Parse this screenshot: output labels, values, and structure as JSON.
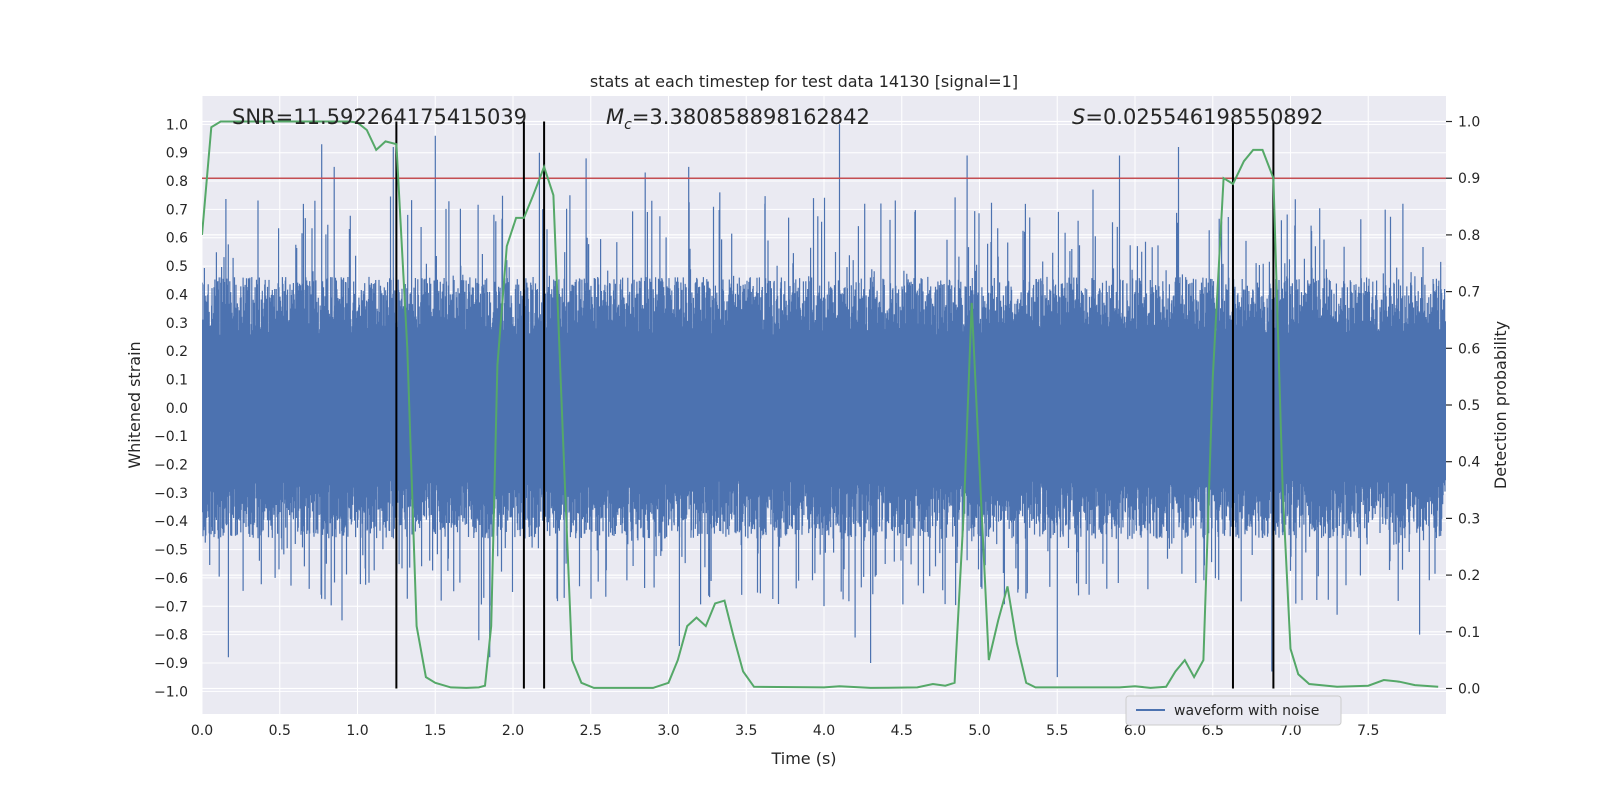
{
  "colors": {
    "background": "#eaeaf2",
    "grid": "#ffffff",
    "waveform": "#4c72b0",
    "probability": "#55a868",
    "threshold": "#c44e52",
    "markers": "#000000",
    "text": "#262626"
  },
  "chart_data": {
    "type": "line",
    "title": "stats at each timestep for test data 14130 [signal=1]",
    "xlabel": "Time (s)",
    "ylabel_left": "Whitened strain",
    "ylabel_right": "Detection probability",
    "xlim": [
      0,
      8
    ],
    "ylim_left": [
      -1.08,
      1.1
    ],
    "ylim_right": [
      -0.045,
      1.045
    ],
    "x_ticks": [
      "0.0",
      "0.5",
      "1.0",
      "1.5",
      "2.0",
      "2.5",
      "3.0",
      "3.5",
      "4.0",
      "4.5",
      "5.0",
      "5.5",
      "6.0",
      "6.5",
      "7.0",
      "7.5"
    ],
    "y_ticks_left": [
      "1.0",
      "0.9",
      "0.8",
      "0.7",
      "0.6",
      "0.5",
      "0.4",
      "0.3",
      "0.2",
      "0.1",
      "0.0",
      "-0.1",
      "-0.2",
      "-0.3",
      "-0.4",
      "-0.5",
      "-0.6",
      "-0.7",
      "-0.8",
      "-0.9",
      "-1.0"
    ],
    "y_ticks_right": [
      "1.0",
      "0.9",
      "0.8",
      "0.7",
      "0.6",
      "0.5",
      "0.4",
      "0.3",
      "0.2",
      "0.1",
      "0.0"
    ],
    "annotations": {
      "snr": "SNR=11.592264175415039",
      "mc_symbol": "M",
      "mc_sub": "c",
      "mc_value": "=3.380858898162842",
      "s_symbol": "S",
      "s_value": "=0.025546198550892"
    },
    "legend": {
      "label": "waveform with noise",
      "location": "lower-right"
    },
    "threshold": 0.9,
    "detection_markers": [
      1.25,
      2.07,
      2.2,
      6.63,
      6.89
    ],
    "series": [
      {
        "name": "waveform with noise",
        "axis": "left",
        "style": "dense-noise",
        "core_amplitude": 0.42,
        "peaks": [
          [
            0.77,
            0.93
          ],
          [
            0.8,
            -0.55
          ],
          [
            0.85,
            0.85
          ],
          [
            1.23,
            0.92
          ],
          [
            1.5,
            0.96
          ],
          [
            1.78,
            -0.82
          ],
          [
            1.85,
            -0.88
          ],
          [
            2.17,
            0.9
          ],
          [
            2.47,
            0.88
          ],
          [
            3.07,
            -0.84
          ],
          [
            3.13,
            0.85
          ],
          [
            3.33,
            0.76
          ],
          [
            4.1,
            1.0
          ],
          [
            4.2,
            -0.81
          ],
          [
            4.3,
            -0.9
          ],
          [
            4.92,
            0.89
          ],
          [
            5.5,
            -0.95
          ],
          [
            5.9,
            0.89
          ],
          [
            6.28,
            0.92
          ],
          [
            6.88,
            -0.93
          ],
          [
            7.3,
            -0.73
          ],
          [
            7.83,
            -0.8
          ],
          [
            0.17,
            -0.88
          ],
          [
            0.47,
            -0.6
          ],
          [
            0.9,
            -0.75
          ],
          [
            5.73,
            0.77
          ],
          [
            2.85,
            0.83
          ],
          [
            3.62,
            0.72
          ]
        ]
      },
      {
        "name": "detection probability",
        "axis": "right",
        "points": [
          [
            0.0,
            0.8
          ],
          [
            0.06,
            0.99
          ],
          [
            0.12,
            1.0
          ],
          [
            0.5,
            1.0
          ],
          [
            0.95,
            1.0
          ],
          [
            1.0,
            0.998
          ],
          [
            1.06,
            0.985
          ],
          [
            1.12,
            0.95
          ],
          [
            1.18,
            0.965
          ],
          [
            1.25,
            0.96
          ],
          [
            1.32,
            0.6
          ],
          [
            1.38,
            0.11
          ],
          [
            1.44,
            0.02
          ],
          [
            1.5,
            0.01
          ],
          [
            1.6,
            0.002
          ],
          [
            1.7,
            0.001
          ],
          [
            1.78,
            0.002
          ],
          [
            1.82,
            0.005
          ],
          [
            1.86,
            0.11
          ],
          [
            1.9,
            0.57
          ],
          [
            1.96,
            0.78
          ],
          [
            2.02,
            0.83
          ],
          [
            2.07,
            0.83
          ],
          [
            2.13,
            0.87
          ],
          [
            2.2,
            0.92
          ],
          [
            2.26,
            0.87
          ],
          [
            2.32,
            0.45
          ],
          [
            2.38,
            0.05
          ],
          [
            2.44,
            0.01
          ],
          [
            2.52,
            0.001
          ],
          [
            2.9,
            0.001
          ],
          [
            3.0,
            0.01
          ],
          [
            3.06,
            0.05
          ],
          [
            3.12,
            0.11
          ],
          [
            3.18,
            0.125
          ],
          [
            3.24,
            0.11
          ],
          [
            3.3,
            0.15
          ],
          [
            3.36,
            0.155
          ],
          [
            3.42,
            0.09
          ],
          [
            3.48,
            0.03
          ],
          [
            3.55,
            0.003
          ],
          [
            4.0,
            0.002
          ],
          [
            4.1,
            0.004
          ],
          [
            4.3,
            0.001
          ],
          [
            4.6,
            0.002
          ],
          [
            4.7,
            0.008
          ],
          [
            4.78,
            0.005
          ],
          [
            4.84,
            0.01
          ],
          [
            4.9,
            0.32
          ],
          [
            4.95,
            0.68
          ],
          [
            5.0,
            0.39
          ],
          [
            5.06,
            0.05
          ],
          [
            5.12,
            0.12
          ],
          [
            5.18,
            0.18
          ],
          [
            5.24,
            0.08
          ],
          [
            5.3,
            0.01
          ],
          [
            5.36,
            0.002
          ],
          [
            5.6,
            0.002
          ],
          [
            5.9,
            0.002
          ],
          [
            6.0,
            0.004
          ],
          [
            6.1,
            0.001
          ],
          [
            6.2,
            0.003
          ],
          [
            6.26,
            0.03
          ],
          [
            6.32,
            0.05
          ],
          [
            6.38,
            0.02
          ],
          [
            6.44,
            0.05
          ],
          [
            6.5,
            0.55
          ],
          [
            6.57,
            0.9
          ],
          [
            6.63,
            0.89
          ],
          [
            6.7,
            0.93
          ],
          [
            6.76,
            0.95
          ],
          [
            6.82,
            0.95
          ],
          [
            6.89,
            0.9
          ],
          [
            6.95,
            0.35
          ],
          [
            7.0,
            0.07
          ],
          [
            7.05,
            0.025
          ],
          [
            7.12,
            0.008
          ],
          [
            7.3,
            0.003
          ],
          [
            7.5,
            0.005
          ],
          [
            7.6,
            0.015
          ],
          [
            7.7,
            0.012
          ],
          [
            7.8,
            0.006
          ],
          [
            7.95,
            0.003
          ]
        ]
      }
    ]
  }
}
